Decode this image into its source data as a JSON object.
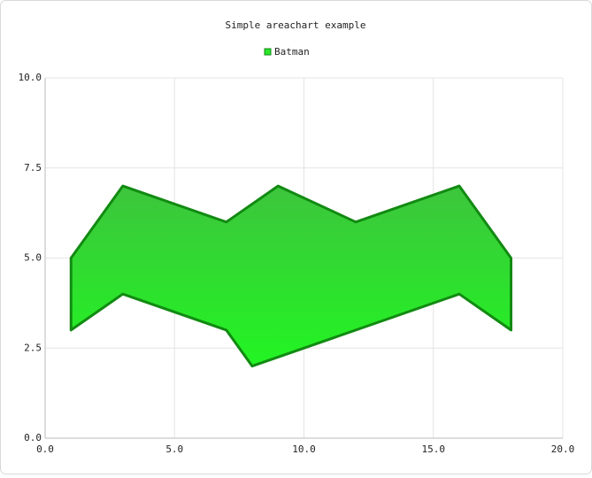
{
  "chart_data": {
    "type": "area",
    "title": "Simple areachart example",
    "series": [
      {
        "name": "Batman",
        "color": "#2be62b",
        "line_color": "#128a12",
        "x": [
          1,
          3,
          7,
          9,
          12,
          16,
          18
        ],
        "values": [
          5,
          7,
          6,
          7,
          6,
          7,
          5
        ],
        "x_low": [
          1,
          3,
          7,
          8,
          16,
          18
        ],
        "values_low": [
          3,
          4,
          3,
          2,
          4,
          3
        ]
      }
    ],
    "xlim": [
      0,
      20
    ],
    "xticks": [
      {
        "value": 0,
        "label": "0.0"
      },
      {
        "value": 5,
        "label": "5.0"
      },
      {
        "value": 10,
        "label": "10.0"
      },
      {
        "value": 15,
        "label": "15.0"
      },
      {
        "value": 20,
        "label": "20.0"
      }
    ],
    "ylim": [
      0,
      10
    ],
    "yticks": [
      {
        "value": 0,
        "label": "0.0"
      },
      {
        "value": 2.5,
        "label": "2.5"
      },
      {
        "value": 5,
        "label": "5.0"
      },
      {
        "value": 7.5,
        "label": "7.5"
      },
      {
        "value": 10,
        "label": "10.0"
      }
    ],
    "grid": true,
    "legend": "top"
  }
}
